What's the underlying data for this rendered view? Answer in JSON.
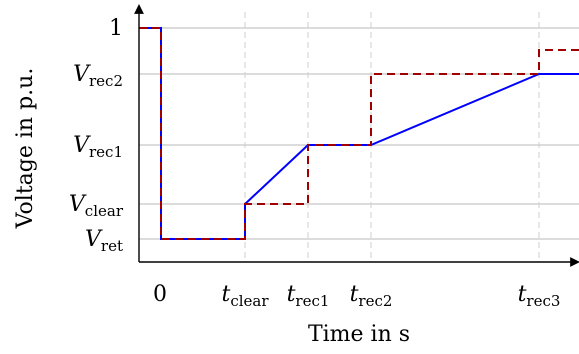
{
  "chart_data": {
    "type": "line",
    "xlabel": "Time in s",
    "ylabel": "Voltage in p.u.",
    "x_ticks": [
      {
        "key": "zero",
        "base": "0",
        "sub": ""
      },
      {
        "key": "tclear",
        "base": "t",
        "sub": "clear"
      },
      {
        "key": "trec1",
        "base": "t",
        "sub": "rec1"
      },
      {
        "key": "trec2",
        "base": "t",
        "sub": "rec2"
      },
      {
        "key": "trec3",
        "base": "t",
        "sub": "rec3"
      }
    ],
    "y_ticks": [
      {
        "key": "vret",
        "base": "V",
        "sub": "ret"
      },
      {
        "key": "vclear",
        "base": "V",
        "sub": "clear"
      },
      {
        "key": "vrec1",
        "base": "V",
        "sub": "rec1"
      },
      {
        "key": "vrec2",
        "base": "V",
        "sub": "rec2"
      },
      {
        "key": "one",
        "base": "1",
        "sub": ""
      }
    ],
    "series": [
      {
        "style": "solid",
        "color": "#0000ff",
        "points": [
          [
            "start",
            "one"
          ],
          [
            "zero",
            "one"
          ],
          [
            "zero",
            "vret"
          ],
          [
            "tclear",
            "vret"
          ],
          [
            "tclear",
            "vclear"
          ],
          [
            "trec1",
            "vrec1"
          ],
          [
            "trec2",
            "vrec1"
          ],
          [
            "trec3",
            "vrec2"
          ],
          [
            "end",
            "vrec2"
          ]
        ]
      },
      {
        "style": "dashed",
        "color": "#a00000",
        "points": [
          [
            "start",
            "one"
          ],
          [
            "zero",
            "one"
          ],
          [
            "zero",
            "vret"
          ],
          [
            "tclear",
            "vret"
          ],
          [
            "tclear",
            "vclear"
          ],
          [
            "trec1",
            "vclear"
          ],
          [
            "trec1",
            "vrec1"
          ],
          [
            "trec2",
            "vrec1"
          ],
          [
            "trec2",
            "vrec2"
          ],
          [
            "trec3",
            "vrec2"
          ],
          [
            "trec3",
            "above"
          ],
          [
            "end",
            "above"
          ]
        ]
      }
    ],
    "grid": {
      "x": "dashed-vertical",
      "y": "horizontal"
    }
  }
}
